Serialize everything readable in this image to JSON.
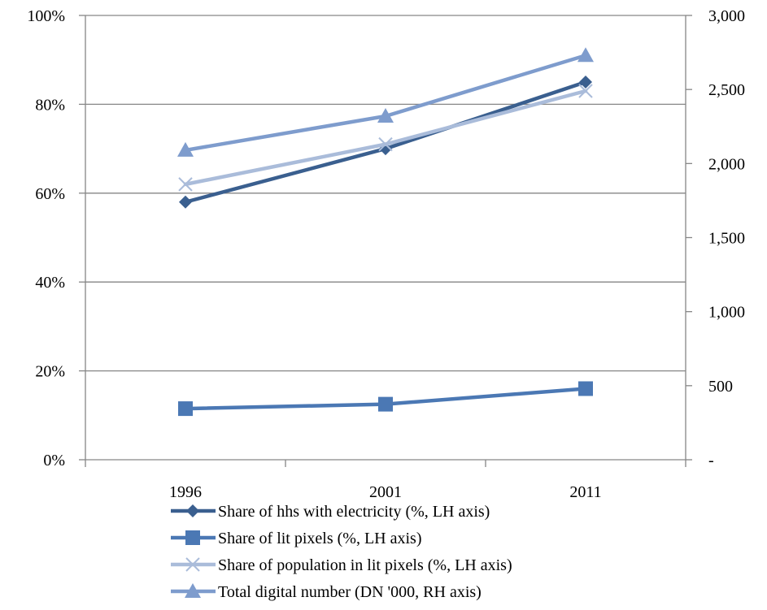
{
  "chart_data": {
    "type": "line",
    "categories": [
      "1996",
      "2001",
      "2011"
    ],
    "y_left": {
      "ticks": [
        "0%",
        "20%",
        "40%",
        "60%",
        "80%",
        "100%"
      ],
      "range": [
        0,
        100
      ]
    },
    "y_right": {
      "ticks": [
        "-",
        "500",
        "1,000",
        "1,500",
        "2,000",
        "2,500",
        "3,000"
      ],
      "range": [
        0,
        3000
      ]
    },
    "grid": "horizontal",
    "legend_position": "bottom",
    "series": [
      {
        "name": "Share of hhs with electricity (%, LH axis)",
        "axis": "left",
        "marker": "diamond",
        "color": "#3a5f8f",
        "values": [
          58,
          70,
          85
        ]
      },
      {
        "name": "Share of lit pixels (%, LH axis)",
        "axis": "left",
        "marker": "square",
        "color": "#4b78b4",
        "values": [
          11.5,
          12.5,
          16
        ]
      },
      {
        "name": "Share of population in lit pixels (%, LH axis)",
        "axis": "left",
        "marker": "x",
        "color": "#aabcda",
        "values": [
          62,
          71,
          83
        ]
      },
      {
        "name": "Total digital number (DN '000, RH axis)",
        "axis": "right",
        "marker": "triangle",
        "color": "#7e9ccd",
        "values": [
          2090,
          2320,
          2730
        ]
      }
    ]
  }
}
